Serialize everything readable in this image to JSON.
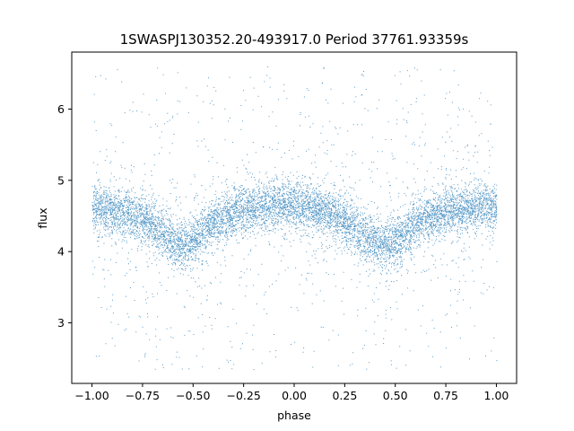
{
  "chart_data": {
    "type": "scatter",
    "title": "1SWASPJ130352.20-493917.0 Period 37761.93359s",
    "xlabel": "phase",
    "ylabel": "flux",
    "xlim": [
      -1.1,
      1.1
    ],
    "ylim": [
      2.15,
      6.8
    ],
    "x_ticks": [
      -1.0,
      -0.75,
      -0.5,
      -0.25,
      0.0,
      0.25,
      0.5,
      0.75,
      1.0
    ],
    "x_tick_labels": [
      "−1.00",
      "−0.75",
      "−0.50",
      "−0.25",
      "0.00",
      "0.25",
      "0.50",
      "0.75",
      "1.00"
    ],
    "y_ticks": [
      3,
      4,
      5,
      6
    ],
    "y_tick_labels": [
      "3",
      "4",
      "5",
      "6"
    ],
    "grid": false,
    "marker_color": "#1f77b4",
    "series": [
      {
        "phase_range": [
          -1.0,
          1.0
        ],
        "band_center": [
          [
            -1.0,
            4.62
          ],
          [
            -0.9,
            4.6
          ],
          [
            -0.8,
            4.52
          ],
          [
            -0.7,
            4.38
          ],
          [
            -0.6,
            4.15
          ],
          [
            -0.55,
            4.1
          ],
          [
            -0.5,
            4.18
          ],
          [
            -0.4,
            4.4
          ],
          [
            -0.3,
            4.55
          ],
          [
            -0.2,
            4.63
          ],
          [
            -0.1,
            4.66
          ],
          [
            0.0,
            4.65
          ],
          [
            0.1,
            4.6
          ],
          [
            0.2,
            4.5
          ],
          [
            0.3,
            4.33
          ],
          [
            0.4,
            4.12
          ],
          [
            0.45,
            4.1
          ],
          [
            0.5,
            4.15
          ],
          [
            0.6,
            4.38
          ],
          [
            0.7,
            4.53
          ],
          [
            0.8,
            4.6
          ],
          [
            0.9,
            4.62
          ],
          [
            1.0,
            4.63
          ]
        ],
        "band_half_width": 0.22,
        "outlier_range": [
          2.35,
          6.6
        ]
      }
    ]
  }
}
